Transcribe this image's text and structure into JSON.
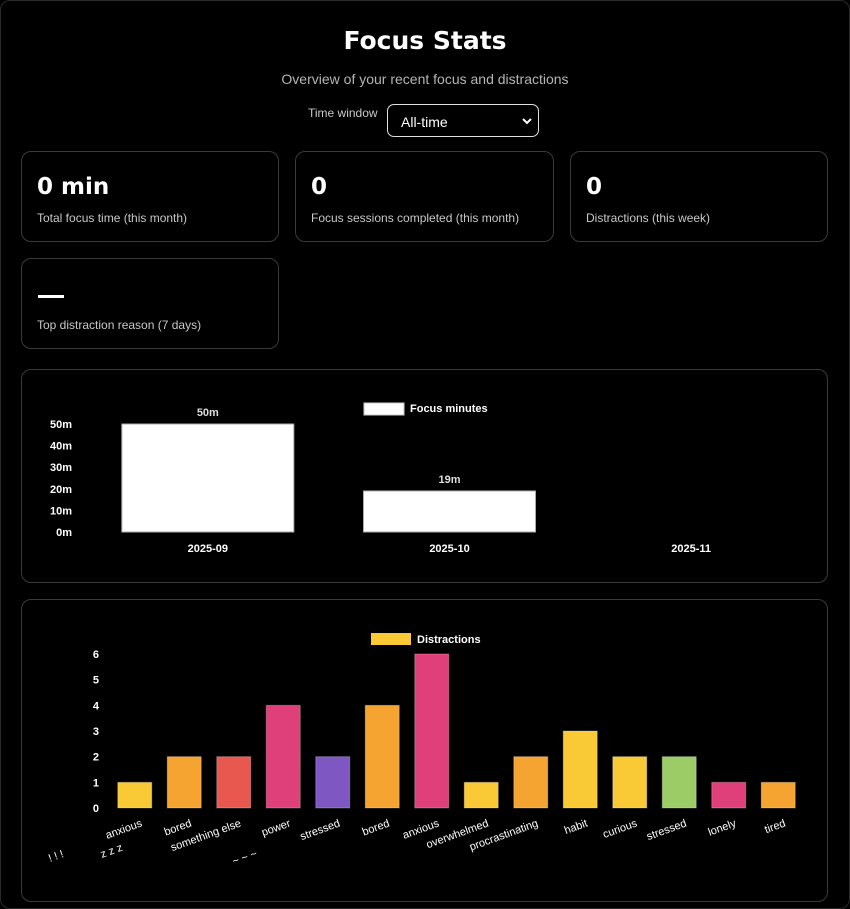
{
  "header": {
    "title": "Focus Stats",
    "subtitle": "Overview of your recent focus and distractions"
  },
  "time_window": {
    "label": "Time window",
    "selected": "All-time",
    "icon": "chevron-down-icon"
  },
  "stats": [
    {
      "value": "0 min",
      "label": "Total focus time (this month)"
    },
    {
      "value": "0",
      "label": "Focus sessions completed (this month)"
    },
    {
      "value": "0",
      "label": "Distractions (this week)"
    },
    {
      "value": "—",
      "label": "Top distraction reason (7 days)"
    }
  ],
  "chart_data": [
    {
      "type": "bar",
      "legend": "Focus minutes",
      "legend_position": "top-center",
      "categories": [
        "2025-09",
        "2025-10",
        "2025-11"
      ],
      "values": [
        50,
        19,
        0
      ],
      "data_labels": [
        "50m",
        "19m",
        ""
      ],
      "y_ticks": [
        "0m",
        "10m",
        "20m",
        "30m",
        "40m",
        "50m"
      ],
      "ylim": [
        0,
        50
      ],
      "bar_color": "#ffffff",
      "grid": false
    },
    {
      "type": "bar",
      "legend": "Distractions",
      "legend_color": "#f9ca35",
      "legend_position": "top-center",
      "categories": [
        "anxious",
        "bored",
        "something else",
        "power",
        "stressed",
        "bored",
        "anxious",
        "overwhelmed",
        "procrastinating",
        "habit",
        "curious",
        "stressed",
        "lonely",
        "tired"
      ],
      "values": [
        1,
        2,
        2,
        4,
        2,
        4,
        6,
        1,
        2,
        3,
        2,
        2,
        1,
        1
      ],
      "colors": [
        "#f9ca35",
        "#f5a432",
        "#e9584f",
        "#e0407a",
        "#7e57c2",
        "#f5a432",
        "#e0407a",
        "#f9ca35",
        "#f5a432",
        "#f9ca35",
        "#f9ca35",
        "#9ccc65",
        "#e0407a",
        "#f5a432"
      ],
      "y_ticks": [
        "0",
        "1",
        "2",
        "3",
        "4",
        "5",
        "6"
      ],
      "ylim": [
        0,
        6
      ],
      "extra_labels": [
        "! ! !",
        "z z z",
        "~ ~ ~"
      ],
      "grid": false
    }
  ]
}
